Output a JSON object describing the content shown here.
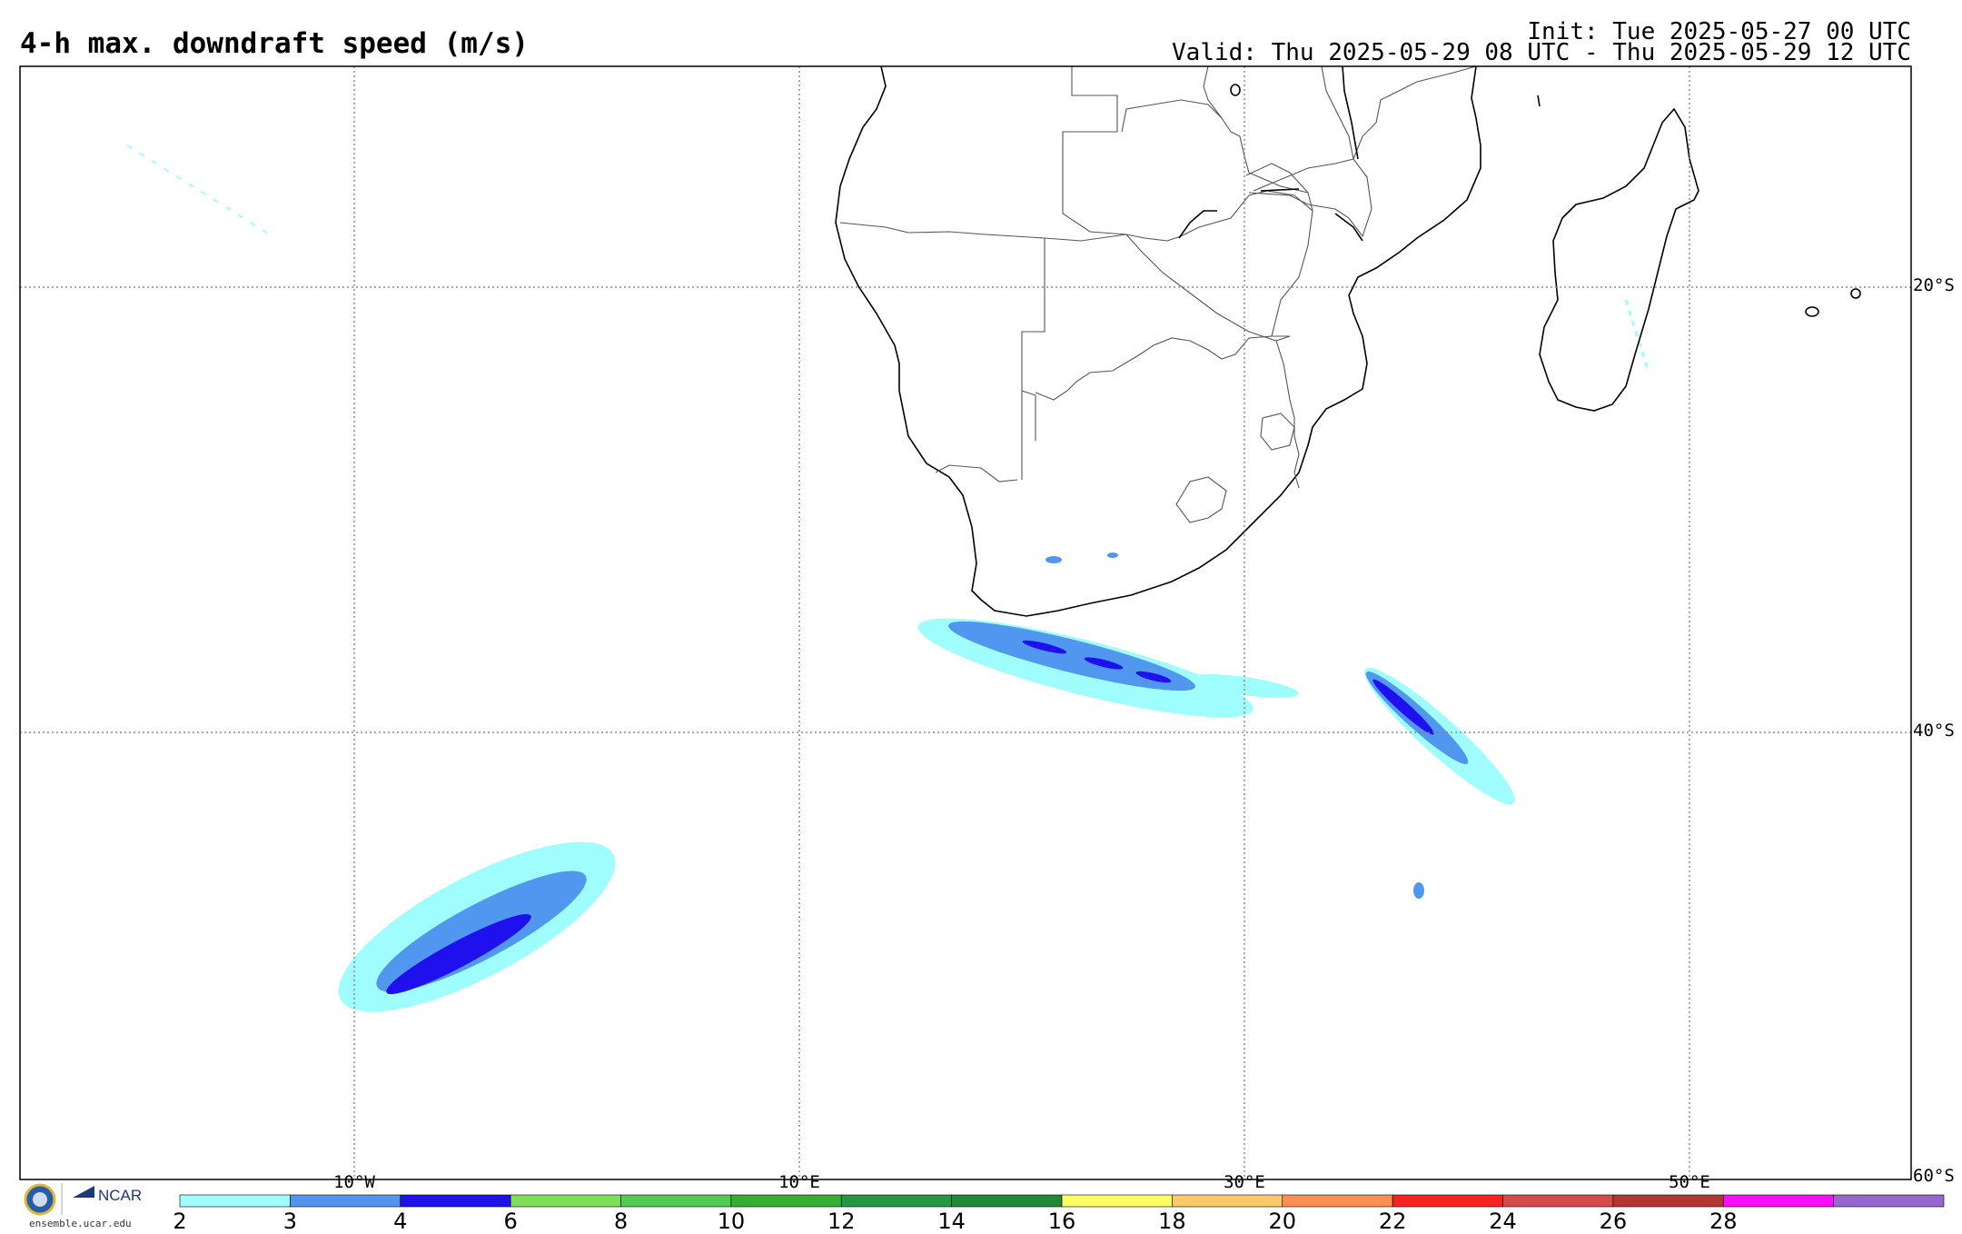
{
  "header": {
    "title": "4-h max. downdraft speed (m/s)",
    "init": "Init: Tue 2025-05-27 00 UTC",
    "valid": "Valid: Thu 2025-05-29 08 UTC - Thu 2025-05-29 12 UTC"
  },
  "map": {
    "latitude_labels": [
      "20°S",
      "40°S",
      "60°S"
    ],
    "longitude_labels": [
      "10°W",
      "10°E",
      "30°E",
      "50°E"
    ]
  },
  "colorbar": {
    "ticks": [
      "2",
      "3",
      "4",
      "6",
      "8",
      "10",
      "12",
      "14",
      "16",
      "18",
      "20",
      "22",
      "24",
      "26",
      "28"
    ],
    "colors": [
      "#a0fdfd",
      "#5297ef",
      "#1e11ee",
      "#7ddf58",
      "#4fcb4f",
      "#33af33",
      "#239845",
      "#1f8a3a",
      "#fdfd5f",
      "#fdc869",
      "#fd8f52",
      "#fd2020",
      "#d94a4a",
      "#b53535",
      "#fb0cfb",
      "#9767cf"
    ]
  },
  "footer": {
    "ncar_label": "NCAR",
    "url": "ensemble.ucar.edu"
  }
}
